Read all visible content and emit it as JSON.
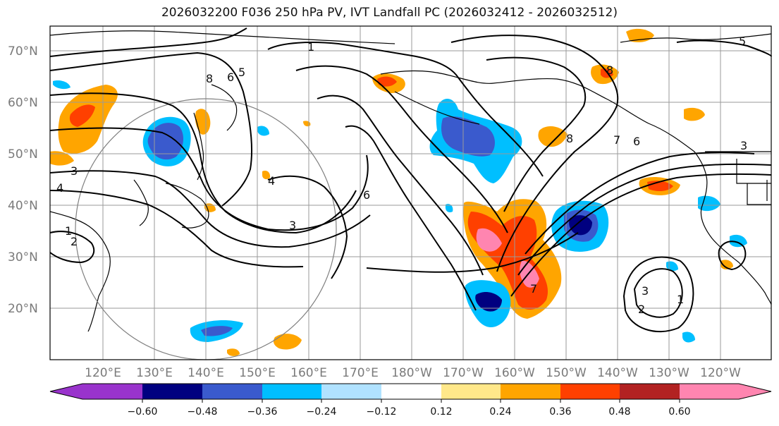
{
  "title": "2026032200 F036 250 hPa PV, IVT Landfall PC (2026032412 - 2026032512)",
  "map": {
    "lat_labels": [
      "70°N",
      "60°N",
      "50°N",
      "40°N",
      "30°N",
      "20°N"
    ],
    "lon_labels": [
      "120°E",
      "130°E",
      "140°E",
      "150°E",
      "160°E",
      "170°E",
      "180°W",
      "170°W",
      "160°W",
      "150°W",
      "140°W",
      "130°W",
      "120°W"
    ],
    "gridline_color": "#9a9a9a",
    "contour_color": "#000000",
    "contour_labels": [
      "1",
      "2",
      "3",
      "4",
      "5",
      "6",
      "7",
      "8",
      "1",
      "3",
      "4",
      "8",
      "6",
      "5",
      "3",
      "6",
      "7",
      "8",
      "1",
      "3",
      "2"
    ]
  },
  "colorbar": {
    "tick_labels": [
      "−0.60",
      "−0.48",
      "−0.36",
      "−0.24",
      "−0.12",
      "0.12",
      "0.24",
      "0.36",
      "0.48",
      "0.60"
    ],
    "colors": [
      "#9933cc",
      "#000080",
      "#3a5acd",
      "#00bfff",
      "#b0e2ff",
      "#ffffff",
      "#ffe88a",
      "#ffa500",
      "#ff4000",
      "#b22222",
      "#ff85b0"
    ]
  }
}
